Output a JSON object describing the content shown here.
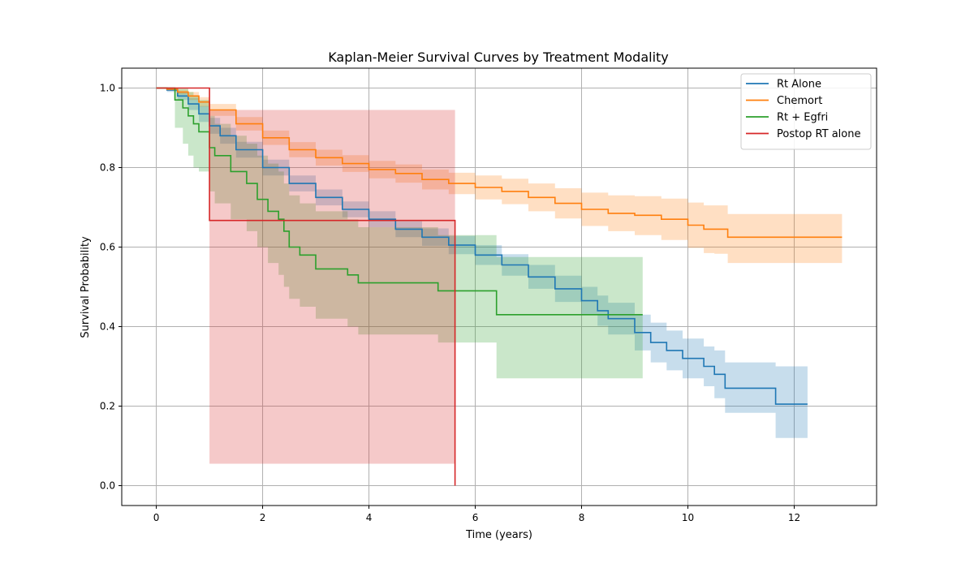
{
  "chart_data": {
    "type": "line",
    "title": "Kaplan-Meier Survival Curves by Treatment Modality",
    "xlabel": "Time (years)",
    "ylabel": "Survival Probability",
    "xlim": [
      -0.65,
      13.55
    ],
    "ylim": [
      -0.05,
      1.05
    ],
    "xticks": [
      0,
      2,
      4,
      6,
      8,
      10,
      12
    ],
    "xtick_labels": [
      "0",
      "2",
      "4",
      "6",
      "8",
      "10",
      "12"
    ],
    "yticks": [
      0.0,
      0.2,
      0.4,
      0.6,
      0.8,
      1.0
    ],
    "ytick_labels": [
      "0.0",
      "0.2",
      "0.4",
      "0.6",
      "0.8",
      "1.0"
    ],
    "grid": true,
    "legend_position": "top-right",
    "series": [
      {
        "name": "Rt Alone",
        "color": "#1f77b4",
        "x": [
          0,
          0.2,
          0.4,
          0.6,
          0.8,
          1.0,
          1.2,
          1.5,
          2.0,
          2.5,
          3.0,
          3.5,
          4.0,
          4.5,
          5.0,
          5.5,
          6.0,
          6.5,
          7.0,
          7.5,
          8.0,
          8.3,
          8.5,
          9.0,
          9.3,
          9.6,
          9.9,
          10.3,
          10.5,
          10.7,
          11.65,
          12.25
        ],
        "y": [
          1.0,
          0.995,
          0.98,
          0.96,
          0.935,
          0.905,
          0.88,
          0.845,
          0.8,
          0.76,
          0.725,
          0.695,
          0.67,
          0.645,
          0.625,
          0.605,
          0.58,
          0.555,
          0.525,
          0.495,
          0.465,
          0.44,
          0.42,
          0.385,
          0.36,
          0.34,
          0.32,
          0.3,
          0.28,
          0.245,
          0.205,
          0.205
        ],
        "lower": [
          1.0,
          0.99,
          0.97,
          0.945,
          0.915,
          0.885,
          0.86,
          0.825,
          0.78,
          0.74,
          0.705,
          0.675,
          0.65,
          0.625,
          0.603,
          0.582,
          0.555,
          0.528,
          0.495,
          0.462,
          0.43,
          0.402,
          0.38,
          0.34,
          0.31,
          0.29,
          0.27,
          0.25,
          0.22,
          0.183,
          0.12,
          0.12
        ],
        "upper": [
          1.0,
          1.0,
          0.99,
          0.975,
          0.955,
          0.925,
          0.9,
          0.865,
          0.82,
          0.78,
          0.745,
          0.715,
          0.69,
          0.665,
          0.647,
          0.628,
          0.605,
          0.582,
          0.555,
          0.528,
          0.5,
          0.478,
          0.46,
          0.43,
          0.41,
          0.39,
          0.37,
          0.35,
          0.34,
          0.31,
          0.3,
          0.3
        ]
      },
      {
        "name": "Chemort",
        "color": "#ff7f0e",
        "x": [
          0,
          0.2,
          0.4,
          0.6,
          0.8,
          1.0,
          1.5,
          2.0,
          2.5,
          3.0,
          3.5,
          4.0,
          4.5,
          5.0,
          5.5,
          6.0,
          6.5,
          7.0,
          7.5,
          8.0,
          8.5,
          9.0,
          9.5,
          10.0,
          10.3,
          10.5,
          10.75,
          12.9
        ],
        "y": [
          1.0,
          0.997,
          0.99,
          0.98,
          0.965,
          0.945,
          0.91,
          0.875,
          0.845,
          0.825,
          0.81,
          0.795,
          0.785,
          0.77,
          0.76,
          0.75,
          0.74,
          0.725,
          0.71,
          0.695,
          0.685,
          0.68,
          0.67,
          0.655,
          0.645,
          0.645,
          0.625,
          0.625
        ],
        "lower": [
          1.0,
          0.994,
          0.984,
          0.97,
          0.953,
          0.93,
          0.893,
          0.857,
          0.826,
          0.805,
          0.789,
          0.773,
          0.762,
          0.745,
          0.733,
          0.72,
          0.708,
          0.69,
          0.672,
          0.653,
          0.64,
          0.63,
          0.618,
          0.598,
          0.585,
          0.583,
          0.56,
          0.56
        ],
        "upper": [
          1.0,
          1.0,
          0.996,
          0.99,
          0.977,
          0.96,
          0.927,
          0.893,
          0.864,
          0.845,
          0.831,
          0.817,
          0.808,
          0.795,
          0.787,
          0.78,
          0.772,
          0.76,
          0.748,
          0.737,
          0.73,
          0.728,
          0.722,
          0.712,
          0.705,
          0.705,
          0.683,
          0.683
        ]
      },
      {
        "name": "Rt + Egfri",
        "color": "#2ca02c",
        "x": [
          0,
          0.35,
          0.5,
          0.6,
          0.7,
          0.8,
          1.0,
          1.1,
          1.4,
          1.7,
          1.9,
          2.1,
          2.3,
          2.4,
          2.5,
          2.7,
          3.0,
          3.6,
          3.8,
          5.3,
          6.4,
          9.15
        ],
        "y": [
          1.0,
          0.97,
          0.95,
          0.93,
          0.91,
          0.89,
          0.85,
          0.83,
          0.79,
          0.76,
          0.72,
          0.69,
          0.67,
          0.64,
          0.6,
          0.58,
          0.545,
          0.53,
          0.51,
          0.49,
          0.43,
          0.43
        ],
        "lower": [
          1.0,
          0.9,
          0.86,
          0.83,
          0.8,
          0.79,
          0.74,
          0.71,
          0.67,
          0.64,
          0.6,
          0.56,
          0.53,
          0.5,
          0.47,
          0.45,
          0.42,
          0.4,
          0.38,
          0.36,
          0.27,
          0.27
        ],
        "upper": [
          1.0,
          1.0,
          1.0,
          0.99,
          0.98,
          0.97,
          0.93,
          0.91,
          0.88,
          0.86,
          0.83,
          0.81,
          0.79,
          0.76,
          0.73,
          0.71,
          0.69,
          0.67,
          0.65,
          0.63,
          0.575,
          0.575
        ]
      },
      {
        "name": "Postop RT alone",
        "color": "#d62728",
        "x": [
          0,
          1.0,
          5.62
        ],
        "y": [
          1.0,
          0.667,
          0.0
        ],
        "lower": [
          1.0,
          0.055,
          0.055
        ],
        "upper": [
          1.0,
          0.945,
          0.945
        ]
      }
    ]
  }
}
